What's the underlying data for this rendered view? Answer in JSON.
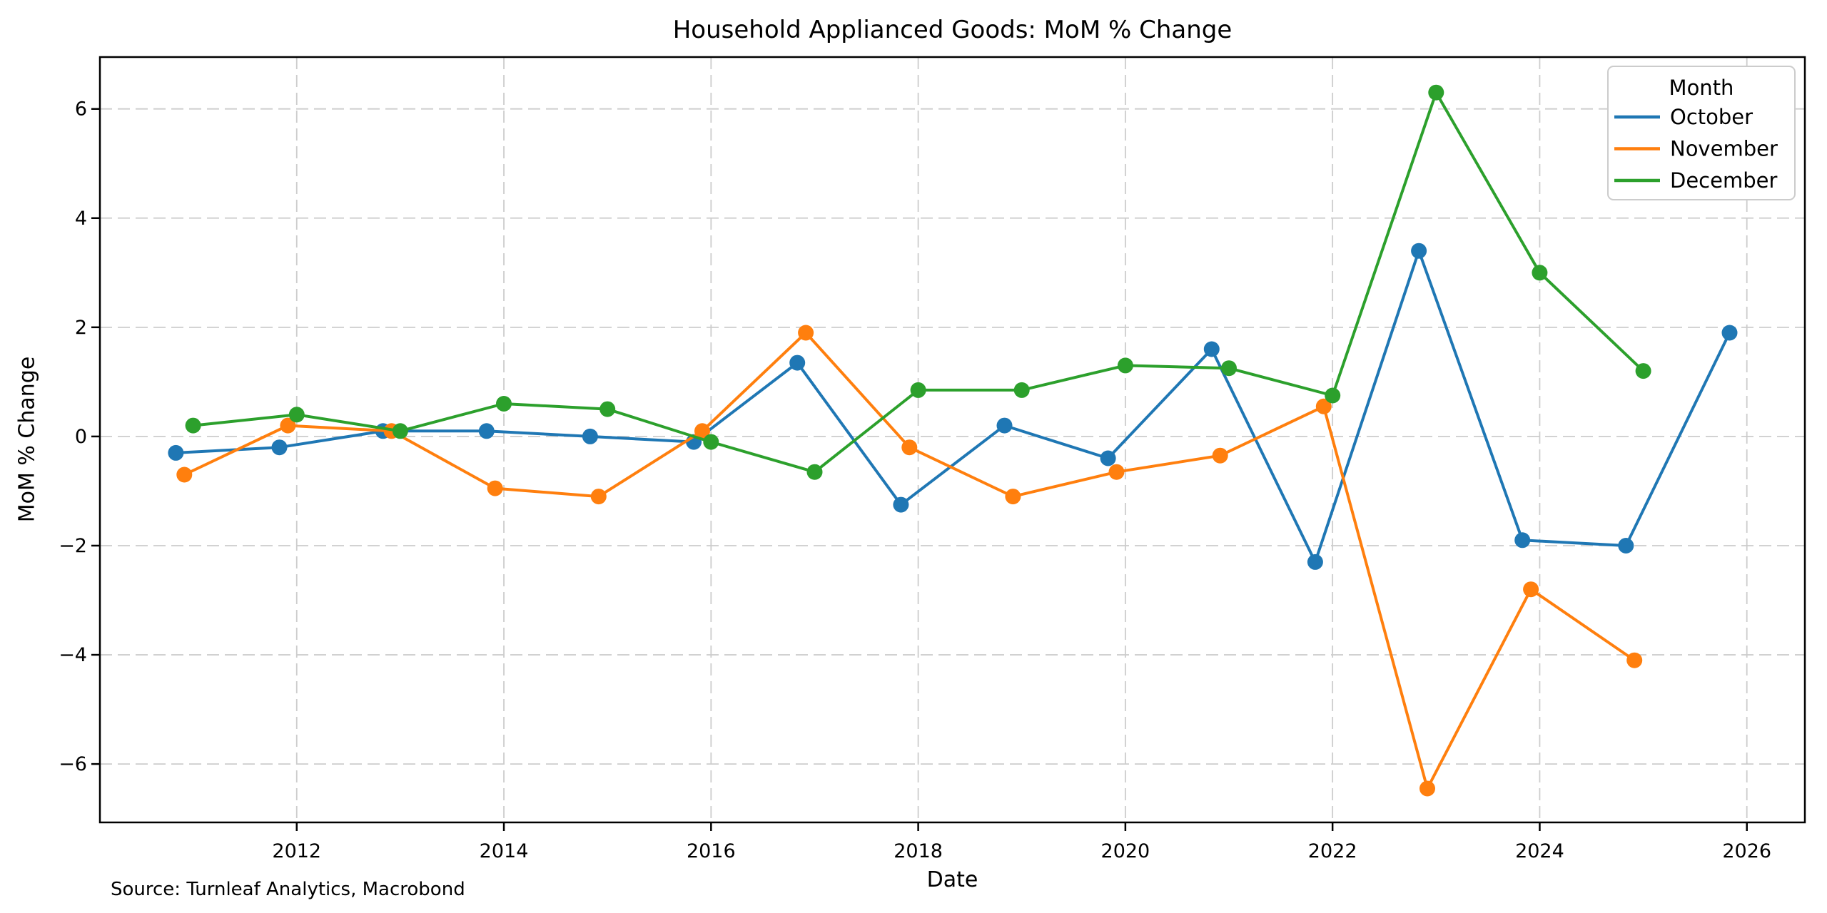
{
  "figure": {
    "title": "Household Applianced Goods: MoM % Change",
    "xlabel": "Date",
    "ylabel": "MoM % Change",
    "source_note": "Source: Turnleaf Analytics, Macrobond"
  },
  "legend": {
    "title": "Month",
    "entries": [
      {
        "label": "October",
        "color": "#1f77b4"
      },
      {
        "label": "November",
        "color": "#ff7f0e"
      },
      {
        "label": "December",
        "color": "#2ca02c"
      }
    ]
  },
  "colors": {
    "background": "#ffffff",
    "grid": "#cccccc",
    "spine": "#000000",
    "legend_border": "#cccccc",
    "october": "#1f77b4",
    "november": "#ff7f0e",
    "december": "#2ca02c"
  },
  "chart_data": {
    "type": "line",
    "title": "Household Applianced Goods: MoM % Change",
    "xlabel": "Date",
    "ylabel": "MoM % Change",
    "xlim": [
      2010.1,
      2026.56
    ],
    "ylim": [
      -7.07,
      6.95
    ],
    "x_ticks": [
      2012,
      2014,
      2016,
      2018,
      2020,
      2022,
      2024,
      2026
    ],
    "y_ticks": [
      -6,
      -4,
      -2,
      0,
      2,
      4,
      6
    ],
    "grid": true,
    "grid_style": "dashed",
    "legend_title": "Month",
    "legend_position": "upper right",
    "point_dates": "month-end",
    "series": [
      {
        "name": "October",
        "color": "#1f77b4",
        "x_offset_years": 0.833,
        "years": [
          2010,
          2011,
          2012,
          2013,
          2014,
          2015,
          2016,
          2017,
          2018,
          2019,
          2020,
          2021,
          2022,
          2023,
          2024,
          2025
        ],
        "values": [
          -0.3,
          -0.2,
          0.1,
          0.1,
          0.0,
          -0.1,
          1.35,
          -1.25,
          0.2,
          -0.4,
          1.6,
          -2.3,
          3.4,
          -1.9,
          -2.0,
          1.9
        ]
      },
      {
        "name": "November",
        "color": "#ff7f0e",
        "x_offset_years": 0.915,
        "years": [
          2010,
          2011,
          2012,
          2013,
          2014,
          2015,
          2016,
          2017,
          2018,
          2019,
          2020,
          2021,
          2022,
          2023,
          2024
        ],
        "values": [
          -0.7,
          0.2,
          0.1,
          -0.95,
          -1.1,
          0.1,
          1.9,
          -0.2,
          -1.1,
          -0.65,
          -0.35,
          0.55,
          -6.45,
          -2.8,
          -4.1
        ]
      },
      {
        "name": "December",
        "color": "#2ca02c",
        "x_offset_years": 1.0,
        "years": [
          2010,
          2011,
          2012,
          2013,
          2014,
          2015,
          2016,
          2017,
          2018,
          2019,
          2020,
          2021,
          2022,
          2023,
          2024
        ],
        "values": [
          0.2,
          0.4,
          0.1,
          0.6,
          0.5,
          -0.1,
          -0.65,
          0.85,
          0.85,
          1.3,
          1.25,
          0.75,
          6.3,
          3.0,
          1.2
        ]
      }
    ]
  }
}
